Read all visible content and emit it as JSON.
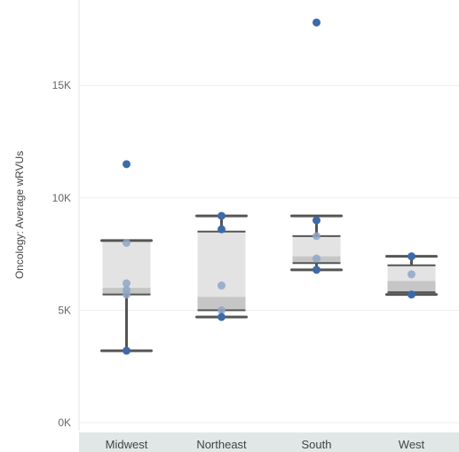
{
  "chart_data": {
    "type": "box",
    "ylabel": "Oncology: Average wRVUs",
    "yticks": [
      {
        "value": 0,
        "label": "0K"
      },
      {
        "value": 5000,
        "label": "5K"
      },
      {
        "value": 10000,
        "label": "10K"
      },
      {
        "value": 15000,
        "label": "15K"
      }
    ],
    "ylim": [
      0,
      18800
    ],
    "grid": true,
    "categories": [
      "Midwest",
      "Northeast",
      "South",
      "West"
    ],
    "boxes": [
      {
        "category": "Midwest",
        "min": 3200,
        "q1": 5700,
        "median": 6000,
        "q3": 8100,
        "max": 8100,
        "points": [
          11500,
          8000,
          6200,
          5900,
          5700,
          3200
        ]
      },
      {
        "category": "Northeast",
        "min": 4700,
        "q1": 5000,
        "median": 5600,
        "q3": 8500,
        "max": 9200,
        "points": [
          9200,
          8600,
          6100,
          5000,
          4700
        ]
      },
      {
        "category": "South",
        "min": 6800,
        "q1": 7100,
        "median": 7400,
        "q3": 8300,
        "max": 9200,
        "points": [
          17800,
          9000,
          8300,
          7300,
          6800
        ]
      },
      {
        "category": "West",
        "min": 5700,
        "q1": 5800,
        "median": 6300,
        "q3": 7000,
        "max": 7400,
        "points": [
          7400,
          6600,
          5700
        ]
      }
    ],
    "colors": {
      "box_upper": "#e3e3e3",
      "box_lower": "#c6c6c6",
      "whisker": "#555555",
      "point": "#3d6aa8",
      "point_light": "#8fa6c8",
      "grid": "#eeeeee",
      "axis_band": "#dfe7e7"
    }
  }
}
